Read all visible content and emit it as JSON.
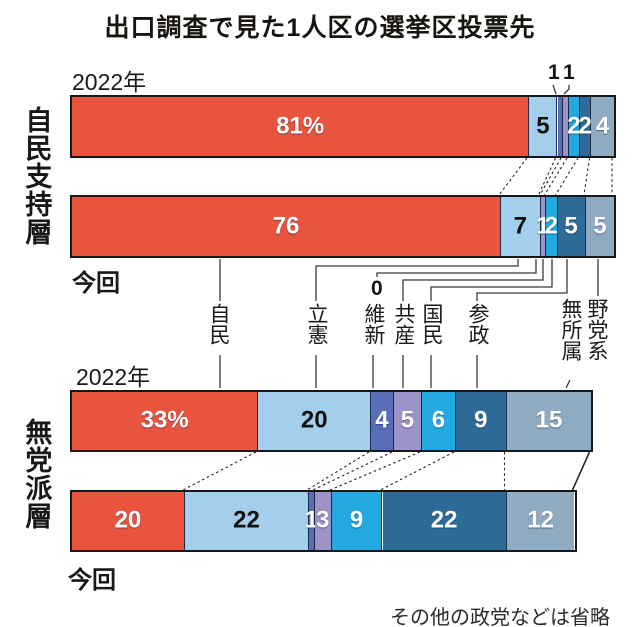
{
  "title": "出口調査で見た1人区の選挙区投票先",
  "footnote": "その他の政党などは省略",
  "party_colors": [
    "#e8543e",
    "#a3cfed",
    "#5a6db9",
    "#9e93c9",
    "#23a8e0",
    "#2e6b97",
    "#8fabc2"
  ],
  "middle_labels": {
    "items": [
      "自民",
      "立憲",
      "維新",
      "共産",
      "国民",
      "参政",
      "無所属",
      "野党系"
    ]
  },
  "chart_data": [
    {
      "type": "bar",
      "group": "自民支持層",
      "unit": "%",
      "categories": [
        "自民",
        "立憲",
        "維新",
        "共産",
        "国民",
        "参政",
        "野党系"
      ],
      "rows": [
        {
          "label": "2022年",
          "values": [
            81,
            5,
            1,
            1,
            2,
            2,
            4
          ],
          "display": [
            "81%",
            "5",
            "1",
            "1",
            "2",
            "2",
            "4"
          ],
          "hide_inbar": [
            2,
            3
          ]
        },
        {
          "label": "今回",
          "values": [
            76,
            7,
            0,
            1,
            2,
            5,
            5
          ],
          "display": [
            "76",
            "7",
            "0",
            "1",
            "2",
            "5",
            "5"
          ]
        }
      ]
    },
    {
      "type": "bar",
      "group": "無党派層",
      "unit": "%",
      "categories": [
        "自民",
        "立憲",
        "維新",
        "共産",
        "国民",
        "参政",
        "無所属"
      ],
      "rows": [
        {
          "label": "2022年",
          "values": [
            33,
            20,
            4,
            5,
            6,
            9,
            15
          ],
          "display": [
            "33%",
            "20",
            "4",
            "5",
            "6",
            "9",
            "15"
          ]
        },
        {
          "label": "今回",
          "values": [
            20,
            22,
            1,
            3,
            9,
            22,
            12
          ],
          "display": [
            "20",
            "22",
            "1",
            "3",
            "9",
            "22",
            "12"
          ]
        }
      ]
    }
  ]
}
